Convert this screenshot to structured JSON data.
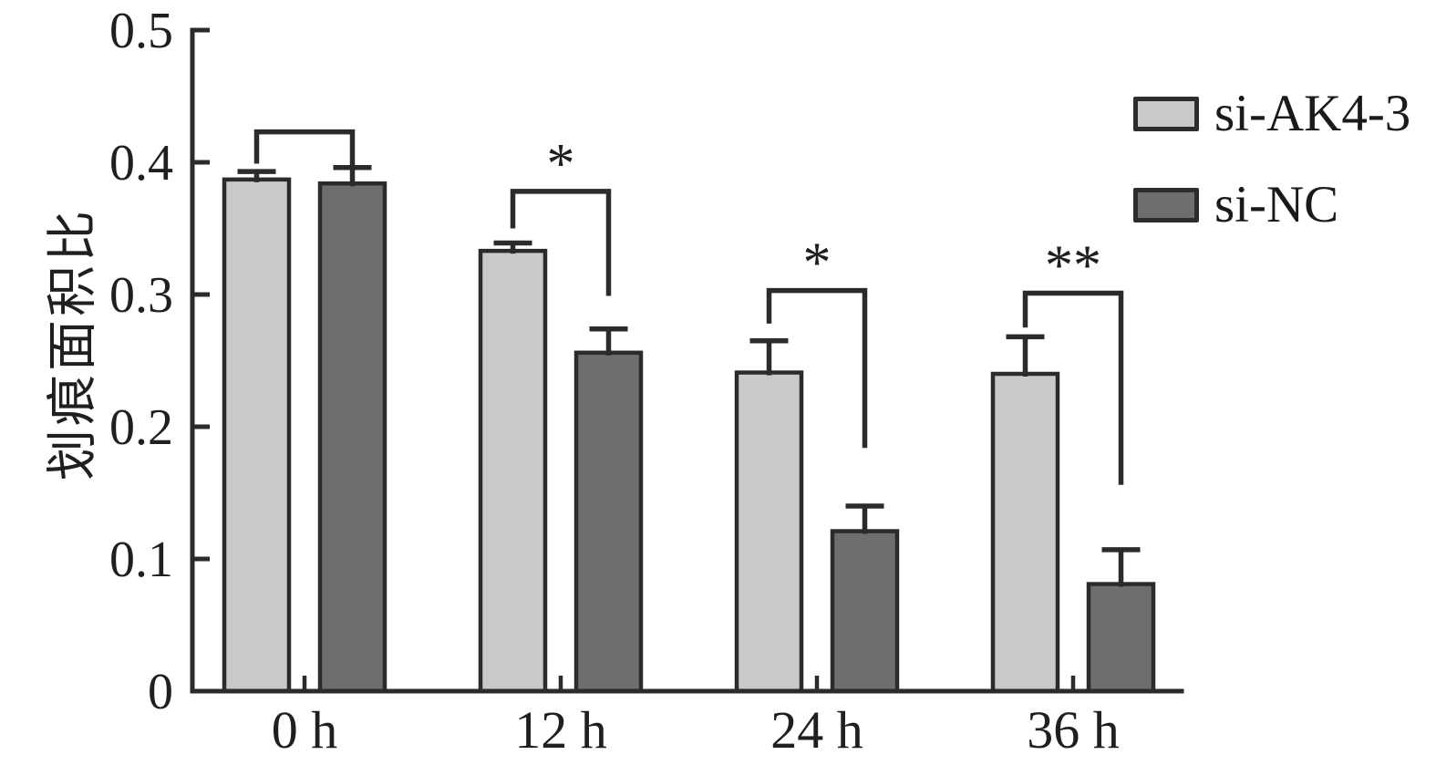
{
  "chart_data": {
    "type": "bar",
    "title": "",
    "xlabel": "",
    "ylabel": "划痕面积比",
    "categories": [
      "0 h",
      "12 h",
      "24 h",
      "36 h"
    ],
    "series": [
      {
        "name": "si-AK4-3",
        "color": "#c9c9c9",
        "values": [
          0.387,
          0.333,
          0.241,
          0.24
        ],
        "errors": [
          0.006,
          0.006,
          0.024,
          0.028
        ]
      },
      {
        "name": "si-NC",
        "color": "#6e6e6e",
        "values": [
          0.384,
          0.256,
          0.121,
          0.081
        ],
        "errors": [
          0.012,
          0.018,
          0.019,
          0.026
        ]
      }
    ],
    "ylim": [
      0,
      0.5
    ],
    "yticks": [
      0,
      0.1,
      0.2,
      0.3,
      0.4,
      0.5
    ],
    "ytick_labels": [
      "0",
      "0.1",
      "0.2",
      "0.3",
      "0.4",
      "0.5"
    ],
    "grid": false,
    "legend_position": "top-right",
    "bar_edge_color": "#2b2b2b",
    "axis_color": "#2b2b2b",
    "significance_brackets": [
      {
        "category": "0 h",
        "label": "",
        "bracket_y": 0.423,
        "left_leg_y": 0.399,
        "right_leg_y": 0.397
      },
      {
        "category": "12 h",
        "label": "*",
        "bracket_y": 0.378,
        "left_leg_y": 0.35,
        "right_leg_y": 0.299
      },
      {
        "category": "24 h",
        "label": "*",
        "bracket_y": 0.303,
        "left_leg_y": 0.278,
        "right_leg_y": 0.184
      },
      {
        "category": "36 h",
        "label": "**",
        "bracket_y": 0.301,
        "left_leg_y": 0.275,
        "right_leg_y": 0.156
      }
    ]
  }
}
